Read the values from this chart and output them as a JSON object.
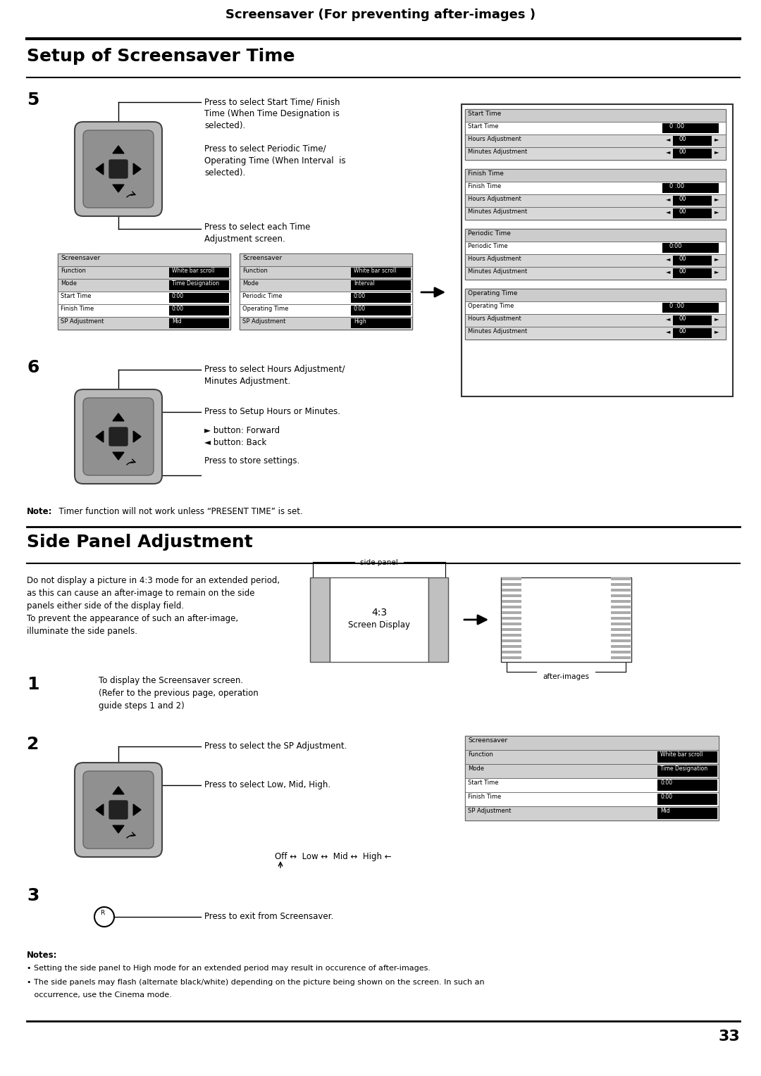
{
  "page_title": "Screensaver (For preventing after-images )",
  "section1_title": "Setup of Screensaver Time",
  "section2_title": "Side Panel Adjustment",
  "bg_color": "#ffffff",
  "step5_label": "5",
  "step6_label": "6",
  "step1_label": "1",
  "step2_label": "2",
  "step3_label": "3",
  "step5_text1": "Press to select Start Time/ Finish\nTime (When Time Designation is\nselected).",
  "step5_text2": "Press to select Periodic Time/\nOperating Time (When Interval  is\nselected).",
  "step5_text3": "Press to select each Time\nAdjustment screen.",
  "step6_text1": "Press to select Hours Adjustment/\nMinutes Adjustment.",
  "step6_text2": "Press to Setup Hours or Minutes.",
  "step6_text3": "► button: Forward\n◄ button: Back",
  "step6_text4": "Press to store settings.",
  "note_text_bold": "Note:",
  "note_text_normal": "  Timer function will not work unless “PRESENT TIME” is set.",
  "side_panel_text_line1": "Do not display a picture in 4:3 mode for an extended period,",
  "side_panel_text_line2": "as this can cause an after-image to remain on the side",
  "side_panel_text_line3": "panels either side of the display field.",
  "side_panel_text_line4": "To prevent the appearance of such an after-image,",
  "side_panel_text_line5": "illuminate the side panels.",
  "step1_text": "To display the Screensaver screen.\n(Refer to the previous page, operation\nguide steps 1 and 2)",
  "step2_text1": "Press to select the SP Adjustment.",
  "step2_text2": "Press to select Low, Mid, High.",
  "step3_text": "Press to exit from Screensaver.",
  "off_low_mid_high": "Off ↔  Low ↔  Mid ↔  High ←",
  "notes_bottom_title": "Notes:",
  "notes_bottom_line1": "• Setting the side panel to High mode for an extended period may result in occurence of after-images.",
  "notes_bottom_line2": "• The side panels may flash (alternate black/white) depending on the picture being shown on the screen. In such an",
  "notes_bottom_line3": "   occurrence, use the Cinema mode.",
  "page_number": "33",
  "gray_light": "#d0d0d0",
  "gray_mid": "#b0b0b0",
  "gray_dark": "#888888"
}
